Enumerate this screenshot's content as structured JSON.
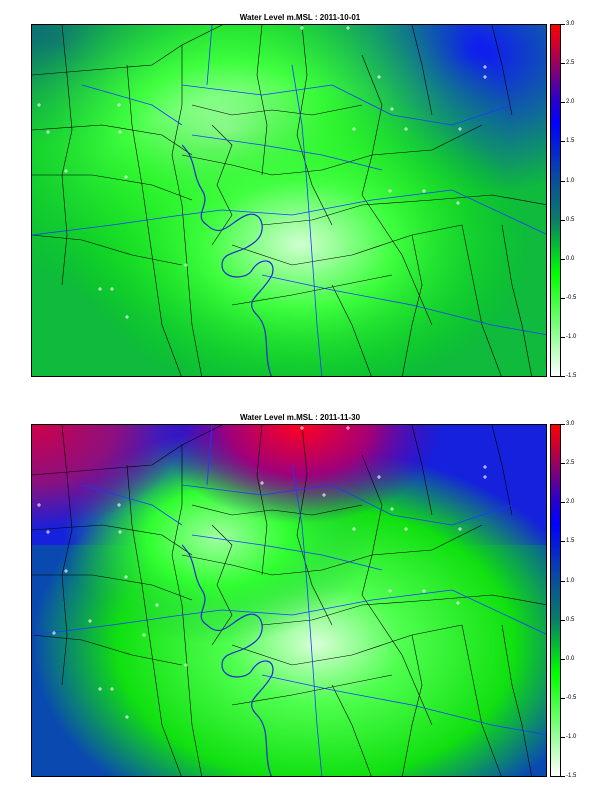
{
  "panels": [
    {
      "title": "Water Level m.MSL : 2011-10-01"
    },
    {
      "title": "Water Level m.MSL : 2011-11-30"
    }
  ],
  "colorbar": {
    "ticks": [
      "3.0",
      "2.5",
      "2.0",
      "1.5",
      "1.0",
      "0.5",
      "0.0",
      "-0.5",
      "-1.0",
      "-1.5"
    ],
    "colors": [
      "#ff0000",
      "#7a0080",
      "#0000ff",
      "#0a7a6a",
      "#00ff00",
      "#ffffff"
    ]
  },
  "legend_icon": "cross-marker"
}
